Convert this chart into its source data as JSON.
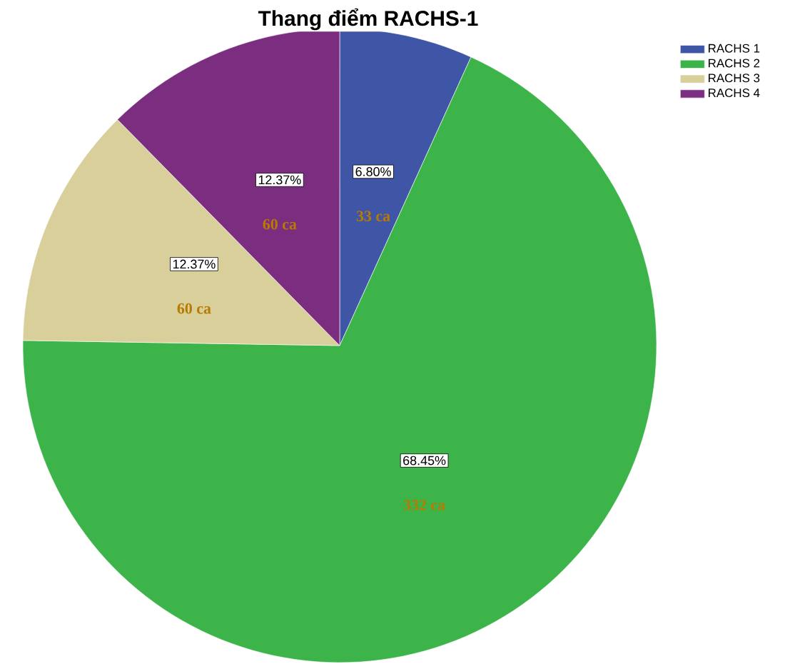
{
  "chart_data": {
    "type": "pie",
    "title": "Thang điểm RACHS-1",
    "categories": [
      "RACHS 1",
      "RACHS 2",
      "RACHS 3",
      "RACHS 4"
    ],
    "values": [
      6.8,
      68.45,
      12.37,
      12.37
    ],
    "colors": [
      "#3f55a6",
      "#3cb44a",
      "#d9cf9a",
      "#7b2d80"
    ],
    "value_labels": [
      "6.80%",
      "68.45%",
      "12.37%",
      "12.37%"
    ],
    "annotations": [
      "33 ca",
      "332 ca",
      "60 ca",
      "60 ca"
    ],
    "legend": "top right"
  }
}
